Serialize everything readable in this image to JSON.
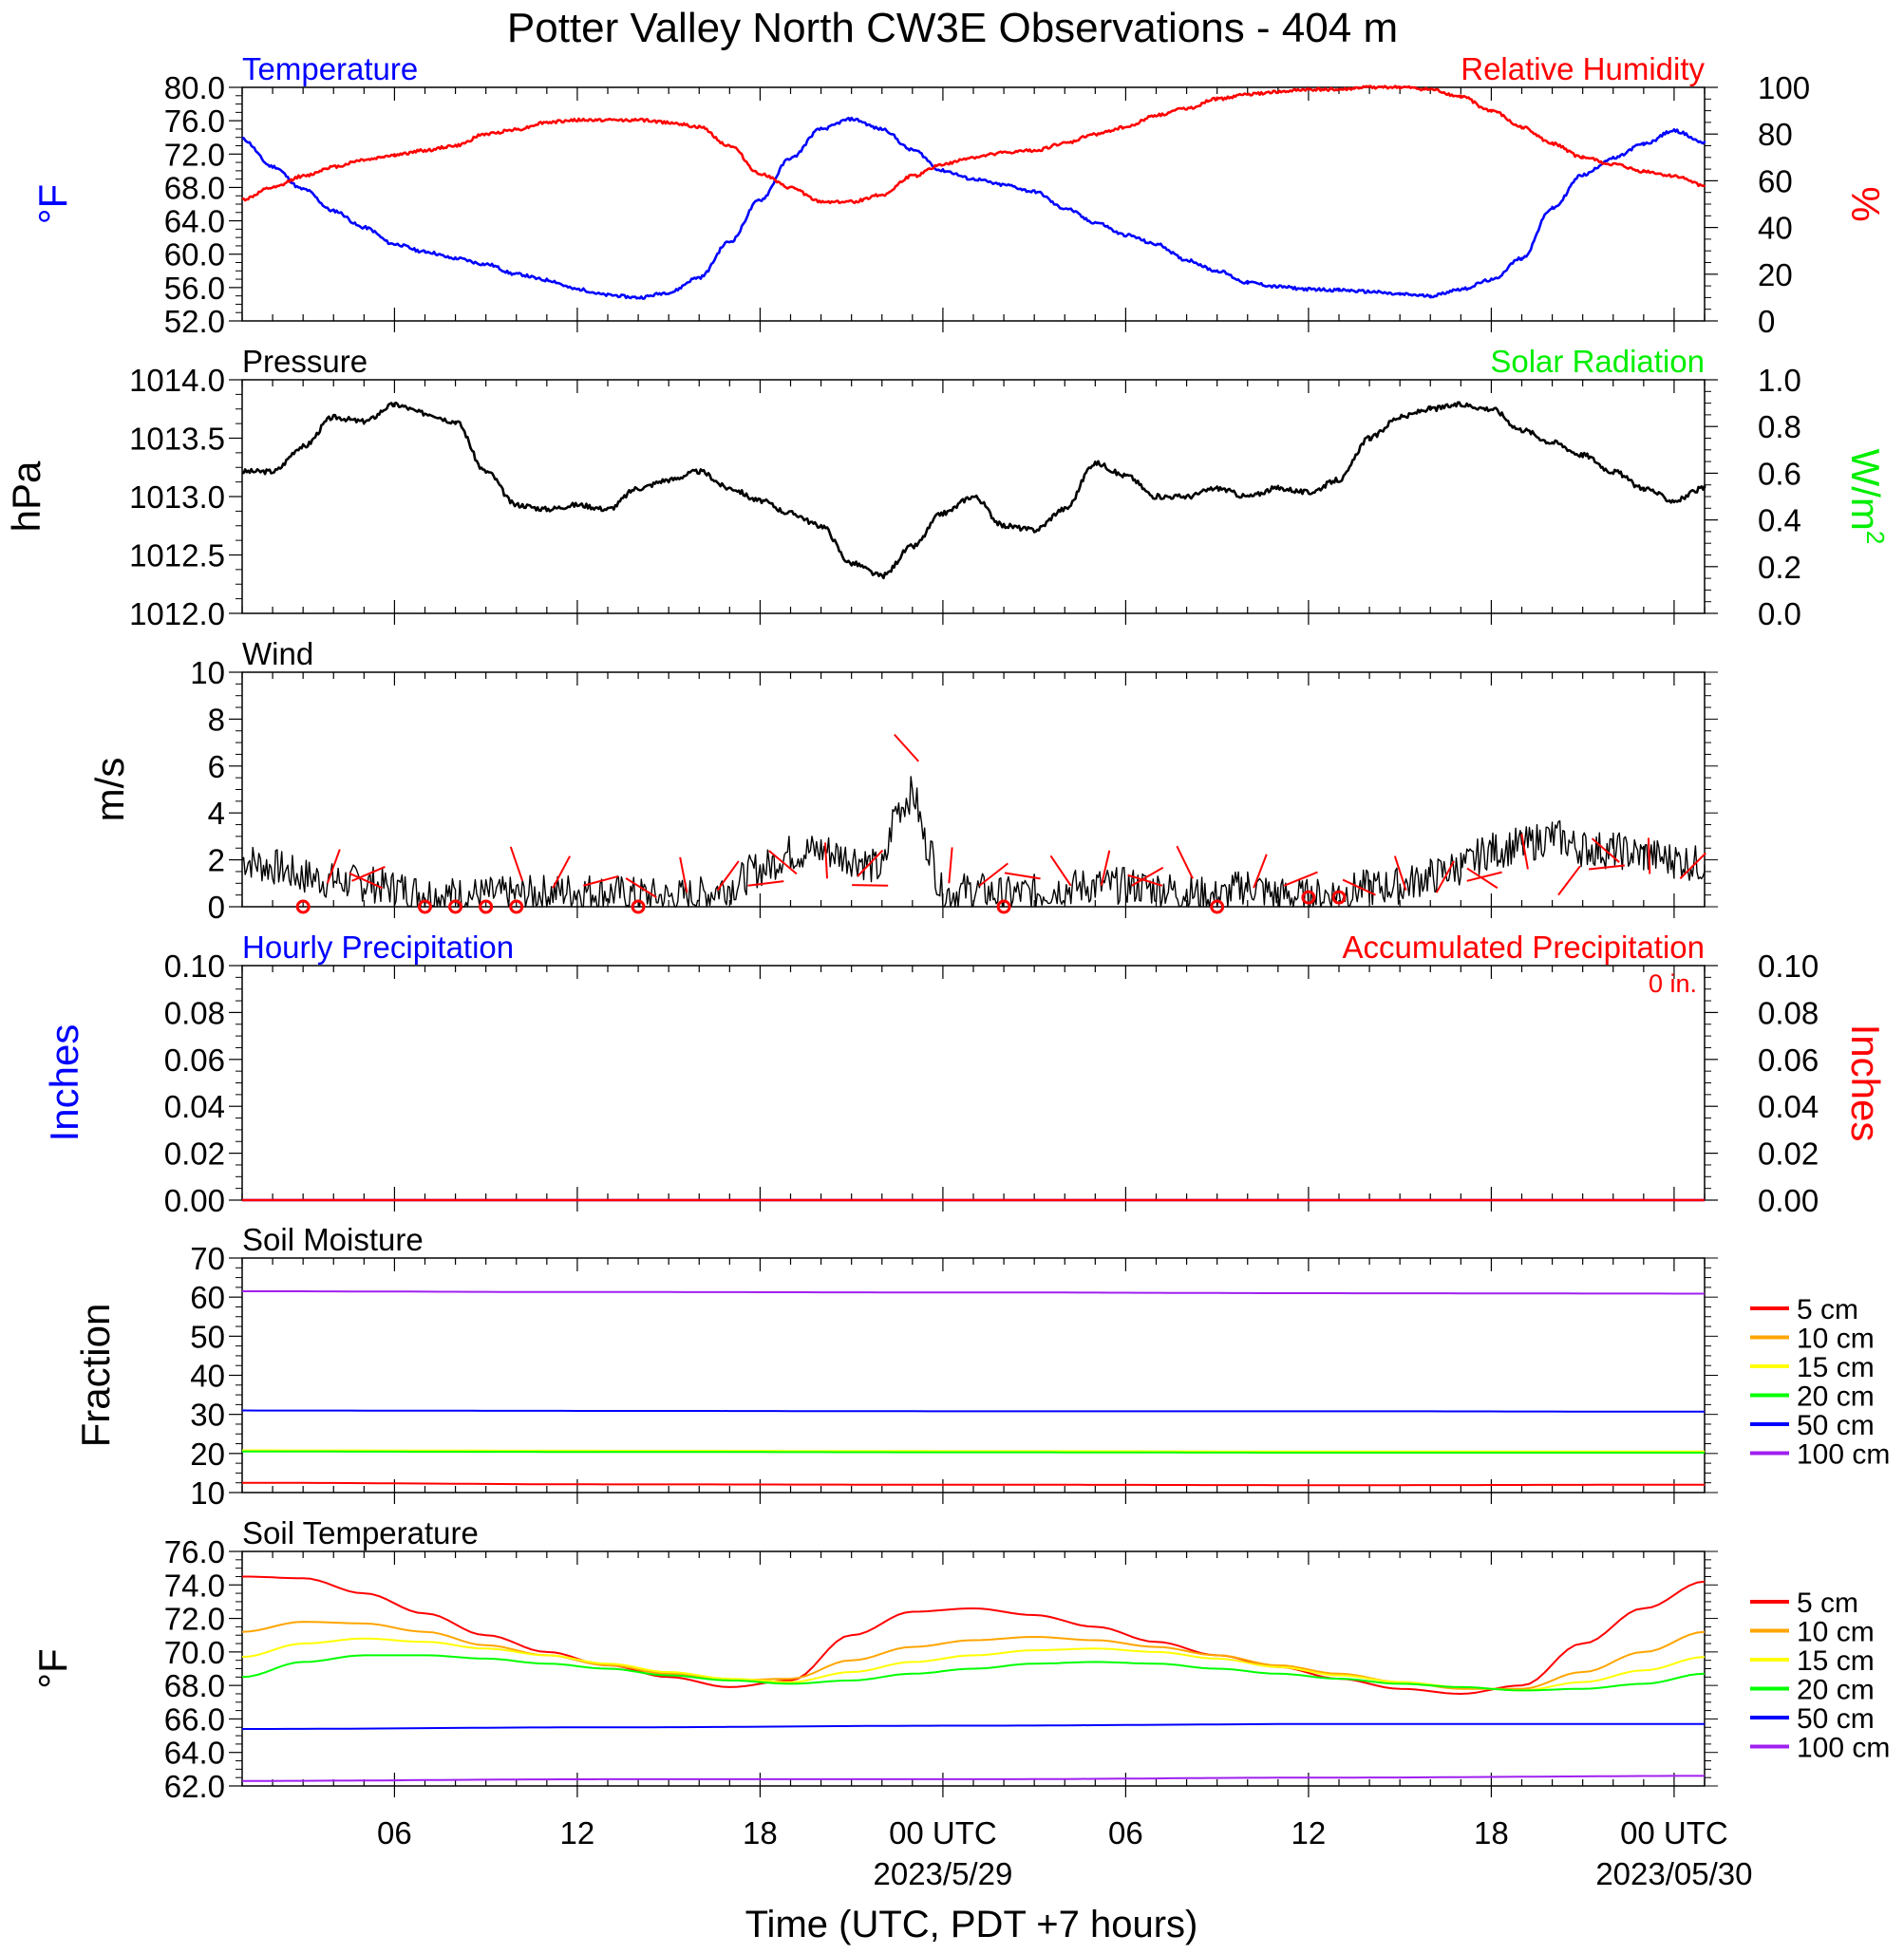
{
  "title": "Potter Valley North CW3E Observations - 404 m",
  "xlabel": "Time (UTC, PDT +7 hours)",
  "x_ticks": [
    {
      "hours": 6,
      "label": "06",
      "date": ""
    },
    {
      "hours": 12,
      "label": "12",
      "date": ""
    },
    {
      "hours": 18,
      "label": "18",
      "date": ""
    },
    {
      "hours": 24,
      "label": "00 UTC",
      "date": "2023/5/29"
    },
    {
      "hours": 30,
      "label": "06",
      "date": ""
    },
    {
      "hours": 36,
      "label": "12",
      "date": ""
    },
    {
      "hours": 42,
      "label": "18",
      "date": ""
    },
    {
      "hours": 48,
      "label": "00 UTC",
      "date": "2023/05/30"
    }
  ],
  "x_range_hours": [
    1,
    49
  ],
  "colors": {
    "temperature": "#0000ff",
    "humidity": "#ff0000",
    "pressure": "#000000",
    "solar": "#00ee00",
    "wind": "#000000",
    "barb": "#ff0000"
  },
  "soil_legend": [
    {
      "label": "5 cm",
      "color": "#ff0000"
    },
    {
      "label": "10 cm",
      "color": "#ffa500"
    },
    {
      "label": "15 cm",
      "color": "#ffff00"
    },
    {
      "label": "20 cm",
      "color": "#00ff00"
    },
    {
      "label": "50 cm",
      "color": "#0000ff"
    },
    {
      "label": "100 cm",
      "color": "#a020f0"
    }
  ],
  "chart_data": [
    {
      "id": "temp-rh",
      "type": "line",
      "title_left": "Temperature",
      "title_right": "Relative Humidity",
      "ylabel_left": "°F",
      "ylabel_right": "%",
      "ylim_left": [
        52,
        80
      ],
      "ylim_right": [
        0,
        100
      ],
      "yticks_left": [
        "80.0",
        "76.0",
        "72.0",
        "68.0",
        "64.0",
        "60.0",
        "56.0",
        "52.0"
      ],
      "yticks_right": [
        "100",
        "80",
        "60",
        "40",
        "20",
        "0"
      ],
      "series": [
        {
          "key": "temperature",
          "axis": "left",
          "x": [
            1,
            2,
            3,
            4,
            5,
            6,
            7,
            8,
            9,
            10,
            11,
            12,
            13,
            14,
            15,
            16,
            17,
            18,
            19,
            20,
            21,
            22,
            23,
            24,
            25,
            26,
            27,
            28,
            29,
            30,
            31,
            32,
            33,
            34,
            35,
            36,
            37,
            38,
            39,
            40,
            41,
            42,
            43,
            44,
            45,
            46,
            47,
            48,
            49
          ],
          "y": [
            73.8,
            70.5,
            67.8,
            65.2,
            63.2,
            61.2,
            60.3,
            59.5,
            58.8,
            57.6,
            56.9,
            55.8,
            55.1,
            54.8,
            55.4,
            57.2,
            61.5,
            66.5,
            71.5,
            75.0,
            76.2,
            75.0,
            72.5,
            70.0,
            69.0,
            68.3,
            67.5,
            65.5,
            63.8,
            62.3,
            61.2,
            59.3,
            58.0,
            56.6,
            56.1,
            55.8,
            55.7,
            55.5,
            55.2,
            55.0,
            55.8,
            56.9,
            59.5,
            65.5,
            69.5,
            71.5,
            73.2,
            74.8,
            73.4
          ]
        },
        {
          "key": "humidity",
          "axis": "right",
          "x": [
            1,
            2,
            3,
            4,
            5,
            6,
            7,
            8,
            9,
            10,
            11,
            12,
            13,
            14,
            15,
            16,
            17,
            18,
            19,
            20,
            21,
            22,
            23,
            24,
            25,
            26,
            27,
            28,
            29,
            30,
            31,
            32,
            33,
            34,
            35,
            36,
            37,
            38,
            39,
            40,
            41,
            42,
            43,
            44,
            45,
            46,
            47,
            48,
            49
          ],
          "y": [
            52,
            57,
            62,
            66,
            69,
            71,
            73,
            75,
            80,
            82,
            85,
            86,
            86,
            86,
            85,
            83,
            75,
            63,
            57,
            51,
            51,
            54,
            62,
            67,
            70,
            72,
            73,
            76,
            80,
            83,
            88,
            91,
            95,
            97,
            98,
            99,
            99,
            100,
            100,
            99,
            96,
            90,
            83,
            76,
            70,
            67,
            64,
            62,
            58
          ]
        }
      ]
    },
    {
      "id": "pressure",
      "type": "line",
      "title_left": "Pressure",
      "title_right": "Solar Radiation",
      "ylabel_left": "hPa",
      "ylabel_right": "W/m",
      "ylabel_right_sup": "2",
      "ylim_left": [
        1011.6,
        1014.4
      ],
      "ylim_right": [
        0,
        1
      ],
      "yticks_left": [
        "1014.0",
        "1013.5",
        "1013.0",
        "1012.5",
        "1012.0"
      ],
      "yticks_right": [
        "1.0",
        "0.8",
        "0.6",
        "0.4",
        "0.2",
        "0.0"
      ],
      "series": [
        {
          "key": "pressure",
          "axis": "left",
          "x": [
            1,
            2,
            3,
            4,
            5,
            6,
            7,
            8,
            9,
            10,
            11,
            12,
            13,
            14,
            15,
            16,
            17,
            18,
            19,
            20,
            21,
            22,
            23,
            24,
            25,
            26,
            27,
            28,
            29,
            30,
            31,
            32,
            33,
            34,
            35,
            36,
            37,
            38,
            39,
            40,
            41,
            42,
            43,
            44,
            45,
            46,
            47,
            48,
            49
          ],
          "y": [
            1013.3,
            1013.3,
            1013.6,
            1013.95,
            1013.9,
            1014.1,
            1014.0,
            1013.9,
            1013.3,
            1012.9,
            1012.85,
            1012.9,
            1012.85,
            1013.1,
            1013.2,
            1013.3,
            1013.1,
            1012.95,
            1012.8,
            1012.65,
            1012.2,
            1012.05,
            1012.4,
            1012.8,
            1013.0,
            1012.65,
            1012.6,
            1012.85,
            1013.4,
            1013.25,
            1013.0,
            1013.0,
            1013.1,
            1013.0,
            1013.1,
            1013.05,
            1013.2,
            1013.7,
            1013.95,
            1014.05,
            1014.1,
            1014.05,
            1013.8,
            1013.65,
            1013.5,
            1013.3,
            1013.1,
            1012.95,
            1013.1
          ]
        }
      ]
    },
    {
      "id": "wind",
      "type": "line",
      "title_left": "Wind",
      "ylabel_left": "m/s",
      "ylim_left": [
        0,
        10
      ],
      "yticks_left": [
        "10",
        "8",
        "6",
        "4",
        "2",
        "0"
      ],
      "series": [
        {
          "key": "wind",
          "axis": "left",
          "x": [
            1,
            2,
            3,
            4,
            5,
            6,
            7,
            8,
            9,
            10,
            11,
            12,
            13,
            14,
            15,
            16,
            17,
            18,
            19,
            20,
            21,
            22,
            22.5,
            23,
            23.5,
            24,
            25,
            26,
            27,
            28,
            29,
            30,
            31,
            32,
            33,
            34,
            35,
            36,
            37,
            38,
            39,
            40,
            41,
            42,
            43,
            44,
            45,
            46,
            47,
            48,
            49
          ],
          "y": [
            2.0,
            1.7,
            1.3,
            1.1,
            1.0,
            0.8,
            0.6,
            0.5,
            0.5,
            0.5,
            0.6,
            0.7,
            0.6,
            0.5,
            0.4,
            0.5,
            0.9,
            1.6,
            2.3,
            2.4,
            2.1,
            1.6,
            4.2,
            4.8,
            2.6,
            0.6,
            0.7,
            0.5,
            0.6,
            0.8,
            0.9,
            0.9,
            0.8,
            0.6,
            0.4,
            0.9,
            0.5,
            0.4,
            0.6,
            0.8,
            0.9,
            1.3,
            1.7,
            2.4,
            2.6,
            3.0,
            2.5,
            2.4,
            2.2,
            2.0,
            1.8
          ]
        },
        {
          "key": "barbs",
          "axis": "left",
          "x": [
            3,
            7,
            8,
            9,
            10,
            14,
            26,
            33,
            36,
            37,
            3.8,
            4.6,
            5.6,
            10.2,
            11.2,
            12.2,
            14.6,
            15.6,
            16.6,
            17.6,
            19.2,
            20.2,
            21.2,
            22.2,
            23.2,
            24.2,
            25.2,
            27.2,
            28.2,
            29.2,
            30.2,
            31.2,
            32.2,
            34.2,
            35.2,
            38.2,
            39.2,
            40.2,
            41.2,
            42.2,
            43.2,
            44.2,
            45.2,
            46.2,
            47.2,
            48.2
          ],
          "y": [
            0,
            0,
            0,
            0,
            0,
            0,
            0,
            0,
            0.4,
            0.4,
            1.0,
            1.1,
            0.8,
            1.1,
            0.8,
            0.9,
            0.4,
            0.6,
            0.7,
            0.9,
            1.4,
            1.2,
            1.3,
            0.9,
            6.2,
            1.0,
            0.9,
            1.2,
            0.9,
            0.9,
            0.9,
            0.9,
            1.2,
            0.8,
            0.9,
            0.5,
            0.7,
            0.6,
            1.1,
            0.8,
            1.6,
            0.5,
            1.6,
            1.9,
            1.4,
            1.2
          ]
        }
      ]
    },
    {
      "id": "precip",
      "type": "line",
      "title_left": "Hourly Precipitation",
      "title_right": "Accumulated Precipitation",
      "annotation": "0 in.",
      "ylabel_left": "Inches",
      "ylabel_right": "Inches",
      "ylim_left": [
        0,
        0.1
      ],
      "ylim_right": [
        0,
        0.1
      ],
      "yticks_left": [
        "0.10",
        "0.08",
        "0.06",
        "0.04",
        "0.02",
        "0.00"
      ],
      "yticks_right": [
        "0.10",
        "0.08",
        "0.06",
        "0.04",
        "0.02",
        "0.00"
      ],
      "series": [
        {
          "key": "hourly",
          "axis": "left",
          "x": [
            1,
            49
          ],
          "y": [
            0,
            0
          ]
        },
        {
          "key": "accumulated",
          "axis": "right",
          "x": [
            1,
            49
          ],
          "y": [
            0,
            0
          ]
        }
      ]
    },
    {
      "id": "soil-moisture",
      "type": "line",
      "title_left": "Soil Moisture",
      "ylabel_left": "Fraction",
      "ylim_left": [
        10,
        70
      ],
      "yticks_left": [
        "70",
        "60",
        "50",
        "40",
        "30",
        "20",
        "10"
      ],
      "series": [
        {
          "key": "5 cm",
          "x": [
            1,
            13,
            25,
            37,
            49
          ],
          "y": [
            12.5,
            12.1,
            12.0,
            11.9,
            12.0
          ]
        },
        {
          "key": "10 cm",
          "x": [
            1,
            13,
            25,
            37,
            49
          ],
          "y": [
            20.6,
            20.5,
            20.4,
            20.3,
            20.3
          ]
        },
        {
          "key": "15 cm",
          "x": [
            1,
            13,
            25,
            37,
            49
          ],
          "y": [
            20.8,
            20.7,
            20.6,
            20.5,
            20.5
          ]
        },
        {
          "key": "20 cm",
          "x": [
            1,
            13,
            25,
            37,
            49
          ],
          "y": [
            20.5,
            20.4,
            20.3,
            20.2,
            20.2
          ]
        },
        {
          "key": "50 cm",
          "x": [
            1,
            13,
            25,
            37,
            49
          ],
          "y": [
            31.0,
            30.9,
            30.8,
            30.8,
            30.7
          ]
        },
        {
          "key": "100 cm",
          "x": [
            1,
            13,
            25,
            37,
            49
          ],
          "y": [
            61.5,
            61.3,
            61.2,
            61.0,
            60.9
          ]
        }
      ]
    },
    {
      "id": "soil-temp",
      "type": "line",
      "title_left": "Soil Temperature",
      "ylabel_left": "°F",
      "ylim_left": [
        62,
        76
      ],
      "yticks_left": [
        "76.0",
        "74.0",
        "72.0",
        "70.0",
        "68.0",
        "66.0",
        "64.0",
        "62.0"
      ],
      "series": [
        {
          "key": "5 cm",
          "x": [
            1,
            3,
            5,
            7,
            9,
            11,
            13,
            15,
            17,
            19,
            21,
            23,
            25,
            27,
            29,
            31,
            33,
            35,
            37,
            39,
            41,
            43,
            45,
            47,
            49
          ],
          "y": [
            74.5,
            74.4,
            73.5,
            72.3,
            71.0,
            70.0,
            69.2,
            68.5,
            67.9,
            68.3,
            71.0,
            72.4,
            72.6,
            72.2,
            71.5,
            70.6,
            69.8,
            69.1,
            68.4,
            67.8,
            67.5,
            68.0,
            70.5,
            72.6,
            74.2
          ]
        },
        {
          "key": "10 cm",
          "x": [
            1,
            3,
            5,
            7,
            9,
            11,
            13,
            15,
            17,
            19,
            21,
            23,
            25,
            27,
            29,
            31,
            33,
            35,
            37,
            39,
            41,
            43,
            45,
            47,
            49
          ],
          "y": [
            71.2,
            71.8,
            71.7,
            71.2,
            70.4,
            69.8,
            69.2,
            68.7,
            68.3,
            68.4,
            69.5,
            70.3,
            70.7,
            70.9,
            70.7,
            70.3,
            69.8,
            69.2,
            68.7,
            68.2,
            67.8,
            67.8,
            68.8,
            70.0,
            71.2
          ]
        },
        {
          "key": "15 cm",
          "x": [
            1,
            3,
            5,
            7,
            9,
            11,
            13,
            15,
            17,
            19,
            21,
            23,
            25,
            27,
            29,
            31,
            33,
            35,
            37,
            39,
            41,
            43,
            45,
            47,
            49
          ],
          "y": [
            69.7,
            70.5,
            70.8,
            70.6,
            70.2,
            69.8,
            69.3,
            68.8,
            68.4,
            68.2,
            68.8,
            69.4,
            69.8,
            70.1,
            70.2,
            70.0,
            69.6,
            69.1,
            68.6,
            68.2,
            67.9,
            67.7,
            68.2,
            68.9,
            69.7
          ]
        },
        {
          "key": "20 cm",
          "x": [
            1,
            3,
            5,
            7,
            9,
            11,
            13,
            15,
            17,
            19,
            21,
            23,
            25,
            27,
            29,
            31,
            33,
            35,
            37,
            39,
            41,
            43,
            45,
            47,
            49
          ],
          "y": [
            68.5,
            69.4,
            69.8,
            69.8,
            69.6,
            69.3,
            69.0,
            68.6,
            68.3,
            68.1,
            68.3,
            68.7,
            69.0,
            69.3,
            69.4,
            69.3,
            69.0,
            68.7,
            68.4,
            68.1,
            67.9,
            67.7,
            67.8,
            68.1,
            68.7
          ]
        },
        {
          "key": "50 cm",
          "x": [
            1,
            13,
            25,
            37,
            49
          ],
          "y": [
            65.4,
            65.5,
            65.6,
            65.7,
            65.7
          ]
        },
        {
          "key": "100 cm",
          "x": [
            1,
            13,
            25,
            37,
            49
          ],
          "y": [
            62.3,
            62.4,
            62.4,
            62.5,
            62.6
          ]
        }
      ]
    }
  ]
}
